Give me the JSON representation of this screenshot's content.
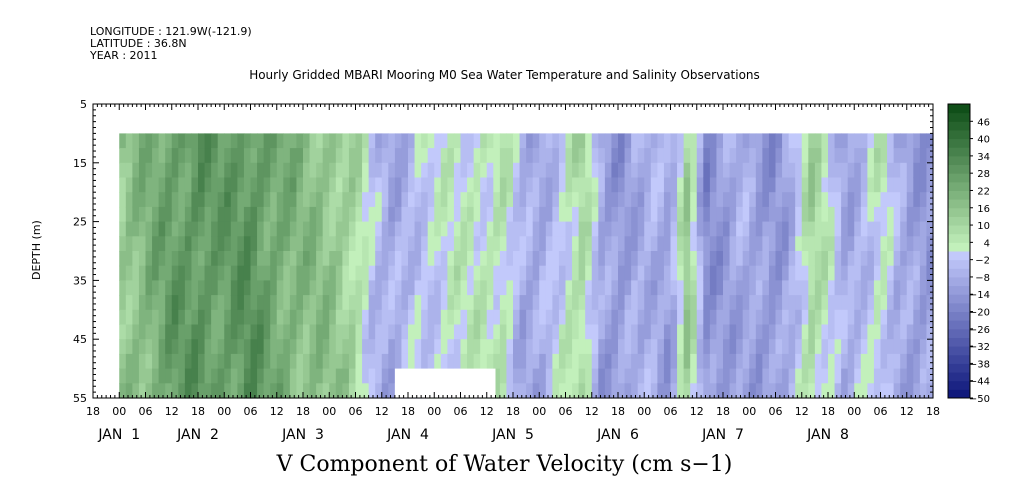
{
  "header": {
    "longitude": "LONGITUDE : 121.9W(-121.9)",
    "latitude": "LATITUDE : 36.8N",
    "year": "YEAR : 2011"
  },
  "chart_data": {
    "type": "heatmap",
    "title": "Hourly Gridded MBARI Mooring M0 Sea Water Temperature and Salinity Observations",
    "xlabel": "V Component of Water Velocity (cm s−1)",
    "ylabel": "DEPTH (m)",
    "ylim": [
      55,
      5
    ],
    "y_ticks": [
      5,
      15,
      25,
      35,
      45,
      55
    ],
    "xlim_hours_from_jan1_00": [
      -6,
      186
    ],
    "data_start_hour": 0,
    "data_end_hour": 186,
    "data_depth_range": [
      10,
      55
    ],
    "x_hour_labels": [
      "18",
      "00",
      "06",
      "12",
      "18",
      "00",
      "06",
      "12",
      "18",
      "00",
      "06",
      "12",
      "18",
      "00",
      "06",
      "12",
      "18",
      "00",
      "06",
      "12",
      "18",
      "00",
      "06",
      "12",
      "18",
      "00",
      "06",
      "12",
      "18",
      "00",
      "06",
      "12",
      "18"
    ],
    "x_day_labels": [
      {
        "label": "JAN  1",
        "hour": 0
      },
      {
        "label": "JAN  2",
        "hour": 18
      },
      {
        "label": "JAN  3",
        "hour": 42
      },
      {
        "label": "JAN  4",
        "hour": 66
      },
      {
        "label": "JAN  5",
        "hour": 90
      },
      {
        "label": "JAN  6",
        "hour": 114
      },
      {
        "label": "JAN  7",
        "hour": 138
      },
      {
        "label": "JAN  8",
        "hour": 162
      }
    ],
    "colorbar_labels": [
      "46",
      "40",
      "34",
      "28",
      "22",
      "16",
      "10",
      "4",
      "−2",
      "−8",
      "−14",
      "−20",
      "−26",
      "−32",
      "−38",
      "−44",
      "−50"
    ],
    "colorbar_min": -50,
    "colorbar_max": 52,
    "colorbar_step": 3,
    "colors": {
      "blue_dark": "#0a1478",
      "blue_light": "#c8ceff",
      "green_light": "#c8f5c0",
      "green_dark": "#0a4a14",
      "missing": "#ffffff"
    },
    "missing_blocks": [
      {
        "hour_start": 63,
        "hour_end": 86,
        "depth_start": 50,
        "depth_end": 55
      }
    ],
    "time_profile": [
      {
        "hour": 0,
        "value": 14
      },
      {
        "hour": 6,
        "value": 20
      },
      {
        "hour": 12,
        "value": 26
      },
      {
        "hour": 18,
        "value": 30
      },
      {
        "hour": 24,
        "value": 26
      },
      {
        "hour": 30,
        "value": 30
      },
      {
        "hour": 36,
        "value": 24
      },
      {
        "hour": 42,
        "value": 18
      },
      {
        "hour": 48,
        "value": 16
      },
      {
        "hour": 54,
        "value": 10
      },
      {
        "hour": 58,
        "value": -4
      },
      {
        "hour": 62,
        "value": -10
      },
      {
        "hour": 68,
        "value": -2
      },
      {
        "hour": 76,
        "value": 2
      },
      {
        "hour": 84,
        "value": 4
      },
      {
        "hour": 88,
        "value": 6
      },
      {
        "hour": 92,
        "value": -8
      },
      {
        "hour": 96,
        "value": -10
      },
      {
        "hour": 102,
        "value": 2
      },
      {
        "hour": 106,
        "value": 10
      },
      {
        "hour": 110,
        "value": -10
      },
      {
        "hour": 114,
        "value": -14
      },
      {
        "hour": 118,
        "value": -8
      },
      {
        "hour": 122,
        "value": -6
      },
      {
        "hour": 126,
        "value": -12
      },
      {
        "hour": 130,
        "value": 14
      },
      {
        "hour": 134,
        "value": -16
      },
      {
        "hour": 138,
        "value": -12
      },
      {
        "hour": 142,
        "value": -8
      },
      {
        "hour": 146,
        "value": -12
      },
      {
        "hour": 150,
        "value": -14
      },
      {
        "hour": 154,
        "value": -6
      },
      {
        "hour": 158,
        "value": 10
      },
      {
        "hour": 162,
        "value": 2
      },
      {
        "hour": 166,
        "value": -10
      },
      {
        "hour": 170,
        "value": -4
      },
      {
        "hour": 174,
        "value": 4
      },
      {
        "hour": 178,
        "value": -8
      },
      {
        "hour": 182,
        "value": -12
      },
      {
        "hour": 186,
        "value": -12
      }
    ]
  }
}
